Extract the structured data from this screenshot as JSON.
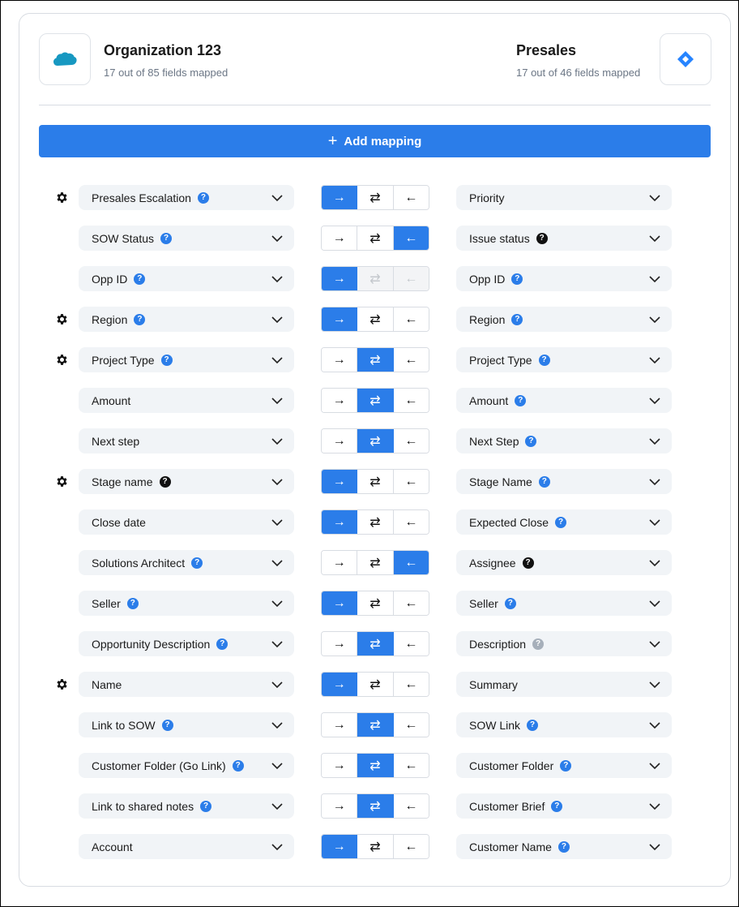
{
  "left": {
    "title": "Organization 123",
    "subtitle": "17 out of 85 fields mapped",
    "logo": "salesforce-logo",
    "logo_color": "#1798c1"
  },
  "right": {
    "title": "Presales",
    "subtitle": "17 out of 46 fields mapped",
    "logo": "jira-logo",
    "logo_color": "#2684ff"
  },
  "add_mapping": {
    "label": "Add mapping",
    "icon": "plus-icon"
  },
  "accent": "#2b7de9",
  "directions": [
    "→",
    "⇄",
    "←"
  ],
  "rows": [
    {
      "gear": true,
      "left": "Presales Escalation",
      "lhelp": "blue",
      "active": 0,
      "right": "Priority",
      "rhelp": ""
    },
    {
      "gear": false,
      "left": "SOW Status",
      "lhelp": "blue",
      "active": 2,
      "right": "Issue status",
      "rhelp": "black"
    },
    {
      "gear": false,
      "left": "Opp ID",
      "lhelp": "blue",
      "active": 0,
      "disabled": true,
      "right": "Opp ID",
      "rhelp": "blue"
    },
    {
      "gear": true,
      "left": "Region",
      "lhelp": "blue",
      "active": 0,
      "right": "Region",
      "rhelp": "blue"
    },
    {
      "gear": true,
      "left": "Project Type",
      "lhelp": "blue",
      "active": 1,
      "right": "Project Type",
      "rhelp": "blue"
    },
    {
      "gear": false,
      "left": "Amount",
      "lhelp": "",
      "active": 1,
      "right": "Amount",
      "rhelp": "blue"
    },
    {
      "gear": false,
      "left": "Next step",
      "lhelp": "",
      "active": 1,
      "right": "Next Step",
      "rhelp": "blue"
    },
    {
      "gear": true,
      "left": "Stage name",
      "lhelp": "black",
      "active": 0,
      "right": "Stage Name",
      "rhelp": "blue"
    },
    {
      "gear": false,
      "left": "Close date",
      "lhelp": "",
      "active": 0,
      "right": "Expected Close",
      "rhelp": "blue"
    },
    {
      "gear": false,
      "left": "Solutions Architect",
      "lhelp": "blue",
      "active": 2,
      "right": "Assignee",
      "rhelp": "black"
    },
    {
      "gear": false,
      "left": "Seller",
      "lhelp": "blue",
      "active": 0,
      "right": "Seller",
      "rhelp": "blue"
    },
    {
      "gear": false,
      "left": "Opportunity Description",
      "lhelp": "blue",
      "active": 1,
      "right": "Description",
      "rhelp": "gray"
    },
    {
      "gear": true,
      "left": "Name",
      "lhelp": "",
      "active": 0,
      "right": "Summary",
      "rhelp": ""
    },
    {
      "gear": false,
      "left": "Link to SOW",
      "lhelp": "blue",
      "active": 1,
      "right": "SOW Link",
      "rhelp": "blue"
    },
    {
      "gear": false,
      "left": "Customer Folder (Go Link)",
      "lhelp": "blue",
      "active": 1,
      "right": "Customer Folder",
      "rhelp": "blue"
    },
    {
      "gear": false,
      "left": "Link to shared notes",
      "lhelp": "blue",
      "active": 1,
      "right": "Customer Brief",
      "rhelp": "blue"
    },
    {
      "gear": false,
      "left": "Account",
      "lhelp": "",
      "active": 0,
      "right": "Customer Name",
      "rhelp": "blue"
    }
  ]
}
